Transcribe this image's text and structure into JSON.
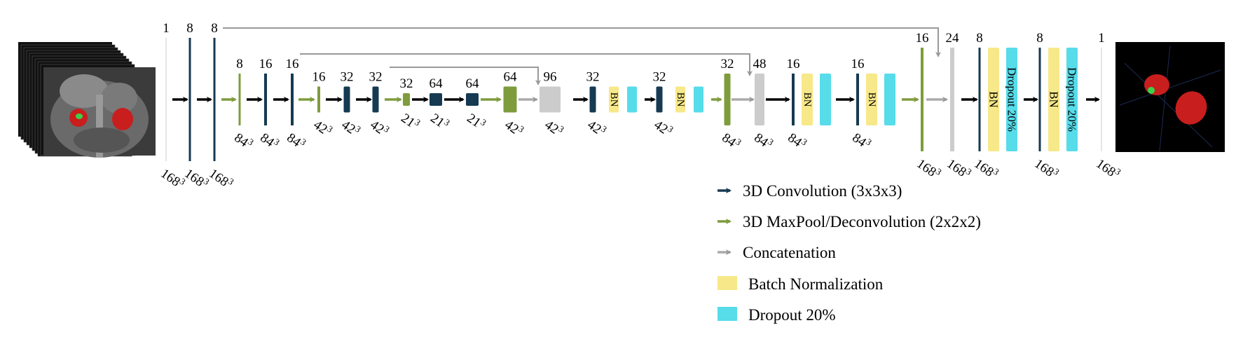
{
  "colors": {
    "conv": "#163a52",
    "pool": "#7e9c3c",
    "concat": "#aaaaaa",
    "concat_block": "#cccccc",
    "batch_norm": "#f7e889",
    "dropout": "#57dcea",
    "arrow_black": "#000000"
  },
  "channels": {
    "c1": "1",
    "c2": "8",
    "c3": "8",
    "c4": "8",
    "c5": "16",
    "c6": "16",
    "c7": "16",
    "c8": "32",
    "c9": "32",
    "c10": "32",
    "c11": "64",
    "c12": "64",
    "c13": "64",
    "c14": "96",
    "c15": "32",
    "c16": "32",
    "c17": "32",
    "c18": "48",
    "c19": "16",
    "c20": "16",
    "c21": "16",
    "c22": "24",
    "c23": "8",
    "c24": "8",
    "c25": "1"
  },
  "sizes": {
    "s1": "168",
    "s2": "168",
    "s3": "168",
    "s4": "84",
    "s5": "84",
    "s6": "84",
    "s7": "42",
    "s8": "42",
    "s9": "42",
    "s10": "21",
    "s11": "21",
    "s12": "21",
    "s13": "42",
    "s14": "42",
    "s15": "42",
    "s16": "42",
    "s17": "84",
    "s18": "84",
    "s19": "84",
    "s20": "84",
    "s21": "168",
    "s22": "168",
    "s23": "168",
    "s24": "168",
    "s25": "168",
    "exp": "3"
  },
  "block_labels": {
    "bn": "BN",
    "dropout": "Dropout 20%"
  },
  "legend": {
    "conv": "3D  Convolution  (3x3x3)",
    "pool": "3D  MaxPool/Deconvolution  (2x2x2)",
    "concat": "Concatenation",
    "bn": "Batch  Normalization",
    "dropout": "Dropout  20%"
  }
}
